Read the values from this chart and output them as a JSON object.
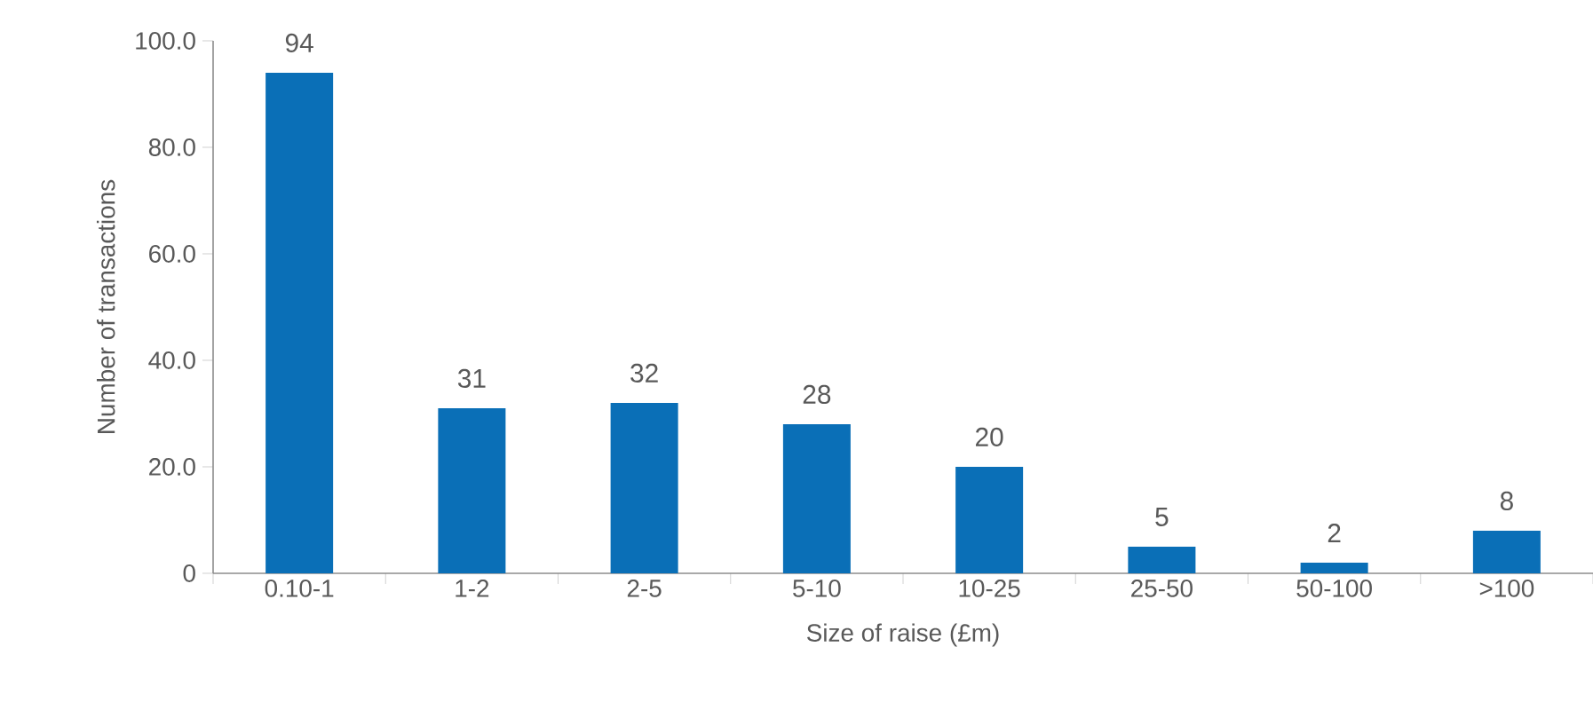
{
  "chart_data": {
    "type": "bar",
    "xlabel": "Size of raise (£m)",
    "ylabel": "Number of transactions",
    "categories": [
      "0.10-1",
      "1-2",
      "2-5",
      "5-10",
      "10-25",
      "25-50",
      "50-100",
      ">100"
    ],
    "values": [
      94,
      31,
      32,
      28,
      20,
      5,
      2,
      8
    ],
    "color": "#0a6fb7",
    "ylim": [
      0,
      100
    ],
    "yticks": [
      0,
      {
        "value": 20,
        "label": "20.0"
      },
      {
        "value": 40,
        "label": "40.0"
      },
      {
        "value": 60,
        "label": "60.0"
      },
      {
        "value": 80,
        "label": "80.0"
      },
      {
        "value": 100,
        "label": "100.0"
      }
    ],
    "data_labels": true,
    "grid": false
  }
}
